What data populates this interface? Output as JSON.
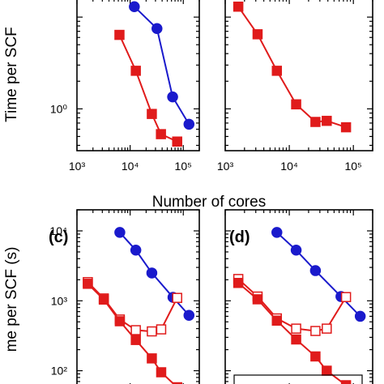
{
  "chart_data": [
    {
      "panel": "a",
      "type": "line",
      "xscale": "log",
      "yscale": "log",
      "xlim": [
        1000,
        200000
      ],
      "ylim": [
        0.35,
        16
      ],
      "xticks": [
        "10³",
        "10⁴",
        "10⁵"
      ],
      "yticks": [
        "10⁰"
      ],
      "ylabel": "Time per SCF",
      "series": [
        {
          "color": "#1a1acc",
          "marker": "circle",
          "filled": true,
          "x": [
            12000,
            32000,
            63000,
            128000
          ],
          "y": [
            13,
            7.5,
            1.35,
            0.68
          ]
        },
        {
          "color": "#e01b1b",
          "marker": "square",
          "filled": true,
          "x": [
            6300,
            12800,
            25600,
            38000,
            76800
          ],
          "y": [
            6.4,
            2.6,
            0.88,
            0.53,
            0.44
          ]
        }
      ]
    },
    {
      "panel": "b",
      "type": "line",
      "xscale": "log",
      "yscale": "log",
      "xlim": [
        1000,
        200000
      ],
      "ylim": [
        0.35,
        16
      ],
      "xticks": [
        "10³",
        "10⁴",
        "10⁵"
      ],
      "series": [
        {
          "color": "#e01b1b",
          "marker": "square",
          "filled": true,
          "x": [
            1600,
            3200,
            6400,
            12800,
            25600,
            38400,
            76800
          ],
          "y": [
            13,
            6.5,
            2.6,
            1.12,
            0.72,
            0.74,
            0.63
          ]
        }
      ]
    },
    {
      "panel": "c",
      "type": "line",
      "xscale": "log",
      "yscale": "log",
      "xlim": [
        1000,
        200000
      ],
      "ylim": [
        55,
        20000
      ],
      "yticks": [
        "10⁴",
        "10³",
        "10²"
      ],
      "ylabel": "me per SCF (s)",
      "label": "(c)",
      "series": [
        {
          "color": "#1a1acc",
          "marker": "circle",
          "filled": true,
          "x": [
            6400,
            12800,
            25600,
            64000,
            128000
          ],
          "y": [
            9500,
            5300,
            2500,
            1120,
            620
          ]
        },
        {
          "color": "#e01b1b",
          "marker": "square",
          "filled": false,
          "x": [
            1600,
            3200,
            6400,
            12800,
            25600,
            38400,
            76800
          ],
          "y": [
            1850,
            1080,
            540,
            380,
            365,
            390,
            1100
          ]
        },
        {
          "color": "#e01b1b",
          "marker": "square",
          "filled": true,
          "x": [
            1600,
            3200,
            6400,
            12800,
            25600,
            38400,
            76800
          ],
          "y": [
            1750,
            1040,
            510,
            275,
            150,
            95,
            58
          ]
        }
      ]
    },
    {
      "panel": "d",
      "type": "line",
      "xscale": "log",
      "yscale": "log",
      "xlim": [
        1000,
        200000
      ],
      "ylim": [
        55,
        20000
      ],
      "label": "(d)",
      "series": [
        {
          "color": "#1a1acc",
          "marker": "circle",
          "filled": true,
          "x": [
            6400,
            12800,
            25600,
            64000,
            128000
          ],
          "y": [
            9500,
            5300,
            2700,
            1150,
            600
          ]
        },
        {
          "color": "#e01b1b",
          "marker": "square",
          "filled": false,
          "x": [
            1600,
            3200,
            6400,
            12800,
            25600,
            38400,
            76800
          ],
          "y": [
            2050,
            1150,
            560,
            400,
            370,
            400,
            1130
          ]
        },
        {
          "color": "#e01b1b",
          "marker": "square",
          "filled": true,
          "x": [
            1600,
            3200,
            6400,
            12800,
            25600,
            38400,
            76800
          ],
          "y": [
            1800,
            1050,
            520,
            280,
            160,
            100,
            62
          ]
        }
      ]
    }
  ],
  "shared": {
    "xlabel": "Number of cores"
  }
}
